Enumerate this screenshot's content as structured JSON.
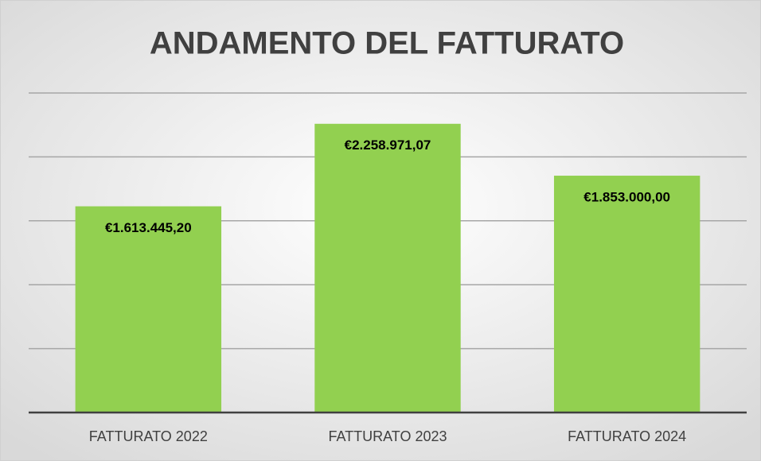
{
  "chart_data": {
    "type": "bar",
    "title": "ANDAMENTO DEL FATTURATO",
    "categories": [
      "FATTURATO 2022",
      "FATTURATO 2023",
      "FATTURATO 2024"
    ],
    "values": [
      1613445.2,
      2258971.07,
      1853000.0
    ],
    "value_labels": [
      "€1.613.445,20",
      "€2.258.971,07",
      "€1.853.000,00"
    ],
    "color": "#92d050",
    "ylim": [
      0,
      2500000
    ],
    "yticks": [
      0,
      500000,
      1000000,
      1500000,
      2000000,
      2500000
    ],
    "grid": true
  }
}
